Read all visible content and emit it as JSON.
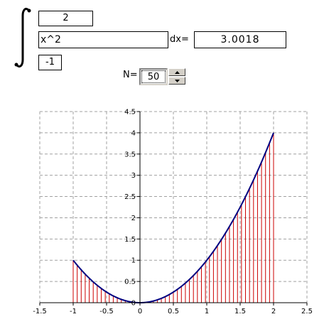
{
  "integral": {
    "upper_limit": "2",
    "function": "x^2",
    "lower_limit": "-1",
    "dx_label": "dx=",
    "result": "3.0018"
  },
  "n_control": {
    "label": "N=",
    "value": "50"
  },
  "chart_data": {
    "type": "line",
    "function": "x^2",
    "n": 50,
    "x_range": [
      -1,
      2
    ],
    "xlim": [
      -1.5,
      2.5
    ],
    "ylim": [
      0,
      4.5
    ],
    "x_ticks": [
      "-1.5",
      "-1",
      "-0.5",
      "0",
      "0.5",
      "1",
      "1.5",
      "2",
      "2.5"
    ],
    "y_ticks": [
      "0",
      "0.5",
      "1",
      "1.5",
      "2",
      "2.5",
      "3",
      "3.5",
      "4",
      "4.5"
    ],
    "grid": true,
    "series": [
      {
        "values_note": "",
        "color": "#000080"
      }
    ],
    "bar_color": "#cc0000"
  },
  "colors": {
    "curve": "#000080",
    "bars": "#cc0000",
    "grid": "#a0a0a0"
  },
  "icons": {
    "spin_up": "triangle-up-icon",
    "spin_down": "triangle-down-icon"
  }
}
